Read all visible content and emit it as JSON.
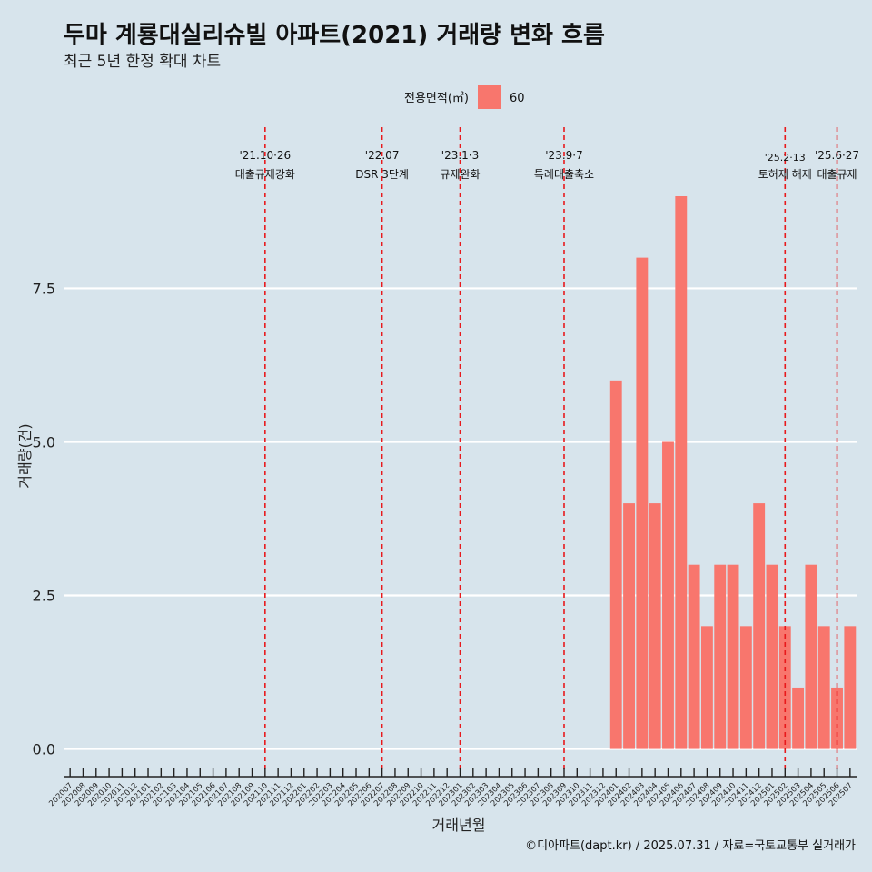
{
  "chart_data": {
    "type": "bar",
    "title": "두마 계룡대실리슈빌 아파트(2021) 거래량 변화 흐름",
    "subtitle": "최근 5년 한정 확대 차트",
    "xlabel": "거래년월",
    "ylabel": "거래량(건)",
    "ylim": [
      -0.45,
      10.05
    ],
    "yticks": [
      0.0,
      2.5,
      5.0,
      7.5
    ],
    "ytick_labels": [
      "0.0",
      "2.5",
      "5.0",
      "7.5"
    ],
    "grid": true,
    "legend": {
      "title": "전용면적(㎡)",
      "position": "top",
      "entries": [
        {
          "label": "60",
          "color": "#f8766d"
        }
      ]
    },
    "categories": [
      "202007",
      "202008",
      "202009",
      "202010",
      "202011",
      "202012",
      "202101",
      "202102",
      "202103",
      "202104",
      "202105",
      "202106",
      "202107",
      "202108",
      "202109",
      "202110",
      "202111",
      "202112",
      "202201",
      "202202",
      "202203",
      "202204",
      "202205",
      "202206",
      "202207",
      "202208",
      "202209",
      "202210",
      "202211",
      "202212",
      "202301",
      "202302",
      "202303",
      "202304",
      "202305",
      "202306",
      "202307",
      "202308",
      "202309",
      "202310",
      "202311",
      "202312",
      "202401",
      "202402",
      "202403",
      "202404",
      "202405",
      "202406",
      "202407",
      "202408",
      "202409",
      "202410",
      "202411",
      "202412",
      "202501",
      "202502",
      "202503",
      "202504",
      "202505",
      "202506",
      "202507"
    ],
    "series": [
      {
        "name": "60",
        "color": "#f8766d",
        "values": [
          0,
          0,
          0,
          0,
          0,
          0,
          0,
          0,
          0,
          0,
          0,
          0,
          0,
          0,
          0,
          0,
          0,
          0,
          0,
          0,
          0,
          0,
          0,
          0,
          0,
          0,
          0,
          0,
          0,
          0,
          0,
          0,
          0,
          0,
          0,
          0,
          0,
          0,
          0,
          0,
          0,
          0,
          6,
          4,
          8,
          4,
          5,
          9,
          3,
          2,
          3,
          3,
          2,
          4,
          3,
          2,
          1,
          3,
          2,
          1,
          2
        ]
      }
    ],
    "annotations": [
      {
        "x": "202110",
        "date": "'21.10·26",
        "text": "대출규제강화"
      },
      {
        "x": "202207",
        "date": "'22.07",
        "text": "DSR 3단계"
      },
      {
        "x": "202301",
        "date": "'23.1·3",
        "text": "규제완화"
      },
      {
        "x": "202309",
        "date": "'23.9·7",
        "text": "특례대출축소"
      },
      {
        "x": "202502",
        "date": "'25.2·13",
        "text": "토허제 해제"
      },
      {
        "x": "202506",
        "date": "'25.6·27",
        "text": "대출규제"
      }
    ],
    "annotation_color": "#e8191c",
    "caption": "©디아파트(dapt.kr) / 2025.07.31 / 자료=국토교통부 실거래가"
  }
}
